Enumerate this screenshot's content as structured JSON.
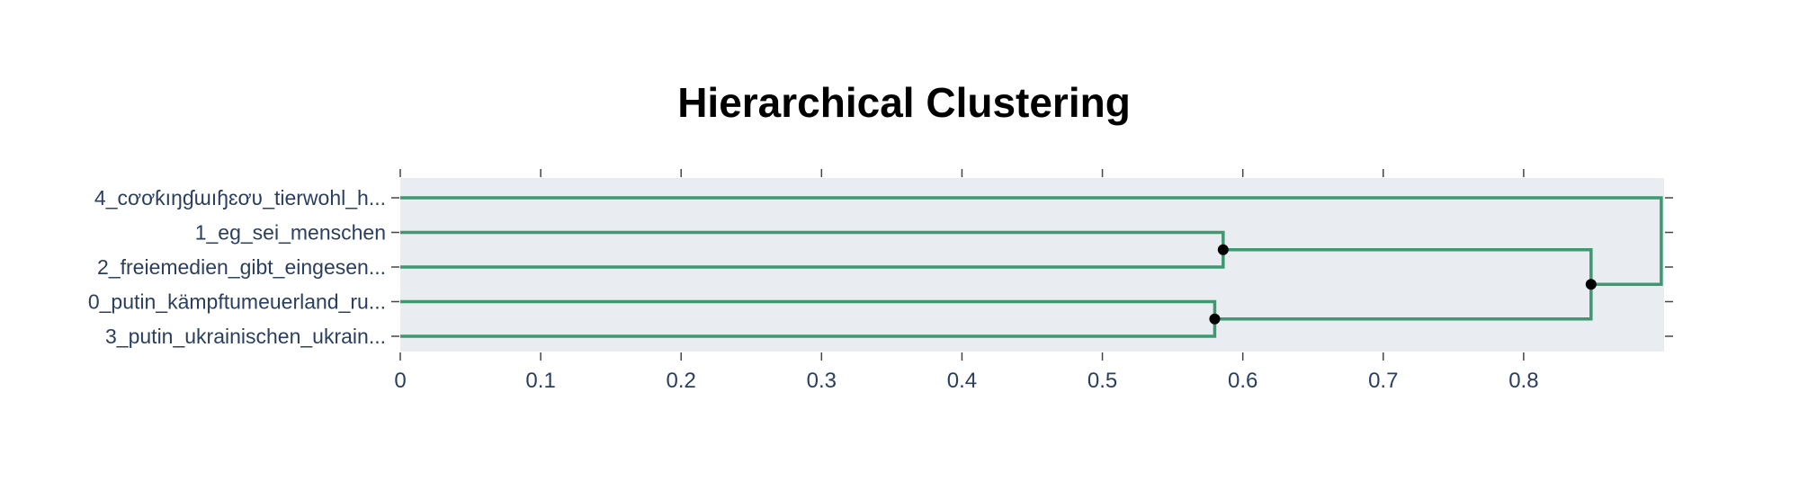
{
  "chart_data": {
    "type": "dendrogram",
    "title": "Hierarchical Clustering",
    "xlabel": "",
    "ylabel": "",
    "xlim": [
      0,
      0.9
    ],
    "x_ticks": [
      0,
      0.1,
      0.2,
      0.3,
      0.4,
      0.5,
      0.6,
      0.7,
      0.8
    ],
    "grid": false,
    "leaves": [
      "4_cơơƙıŋɠɯıɧɛơʋ_tierwohl_h...",
      "1_eg_sei_menschen",
      "2_freiemedien_gibt_eingesen...",
      "0_putin_kämpftumeuerland_ru...",
      "3_putin_ukrainischen_ukrain..."
    ],
    "merges": [
      {
        "children": [
          "1_eg_sei_menschen",
          "2_freiemedien_gibt_eingesen..."
        ],
        "distance": 0.586
      },
      {
        "children": [
          "0_putin_kämpftumeuerland_ru...",
          "3_putin_ukrainischen_ukrain..."
        ],
        "distance": 0.58
      },
      {
        "children": [
          "cluster(1,2)",
          "cluster(0,3)"
        ],
        "distance": 0.848
      },
      {
        "children": [
          "4_cơơƙıŋɠɯıɧɛơʋ_tierwohl_h...",
          "cluster(1,2,0,3)"
        ],
        "distance": 0.898
      }
    ],
    "colors": {
      "branch": "#3d9970",
      "node": "#000000",
      "plot_background": "#e9edf1",
      "tick_text": "#2a3f5f",
      "tick_line": "#444444"
    }
  }
}
